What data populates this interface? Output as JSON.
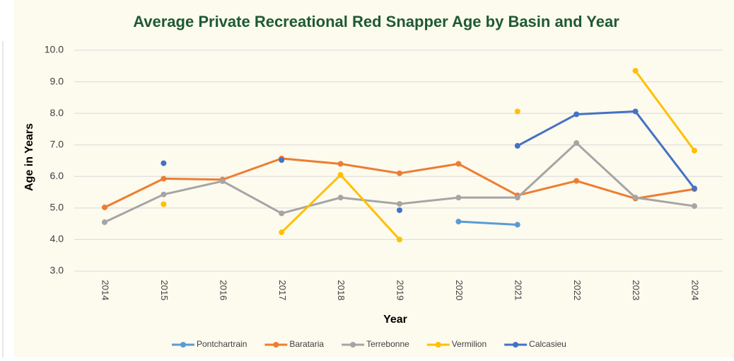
{
  "chart_data": {
    "type": "line",
    "title": "Average Private Recreational Red Snapper Age by Basin and Year",
    "x_label": "Year",
    "y_label": "Age in Years",
    "categories": [
      "2014",
      "2015",
      "2016",
      "2017",
      "2018",
      "2019",
      "2020",
      "2021",
      "2022",
      "2023",
      "2024"
    ],
    "ylim": [
      3,
      10
    ],
    "yticks": [
      {
        "value": 3,
        "label": "3.0"
      },
      {
        "value": 4,
        "label": "4.0"
      },
      {
        "value": 5,
        "label": "5.0"
      },
      {
        "value": 6,
        "label": "6.0"
      },
      {
        "value": 7,
        "label": "7.0"
      },
      {
        "value": 8,
        "label": "8.0"
      },
      {
        "value": 9,
        "label": "9.0"
      },
      {
        "value": 10,
        "label": "10.0"
      }
    ],
    "grid": true,
    "legend": "bottom",
    "series": [
      {
        "name": "Pontchartrain",
        "color": "#5b9bd5",
        "values": [
          null,
          null,
          null,
          null,
          null,
          null,
          4.57,
          4.47,
          null,
          null,
          null
        ]
      },
      {
        "name": "Barataria",
        "color": "#ed7d31",
        "values": [
          5.02,
          5.93,
          5.9,
          6.57,
          6.4,
          6.1,
          6.4,
          5.4,
          5.86,
          5.3,
          5.6
        ]
      },
      {
        "name": "Terrebonne",
        "color": "#a5a5a5",
        "values": [
          4.55,
          5.43,
          5.85,
          4.83,
          5.33,
          5.13,
          5.33,
          5.33,
          7.06,
          5.33,
          5.06
        ]
      },
      {
        "name": "Vermilion",
        "color": "#ffc000",
        "values": [
          null,
          5.12,
          null,
          4.23,
          6.05,
          4.0,
          null,
          8.06,
          null,
          9.35,
          6.82
        ]
      },
      {
        "name": "Calcasieu",
        "color": "#4472c4",
        "values": [
          null,
          6.42,
          null,
          6.52,
          null,
          4.93,
          null,
          6.97,
          7.97,
          8.06,
          5.62
        ]
      }
    ]
  }
}
